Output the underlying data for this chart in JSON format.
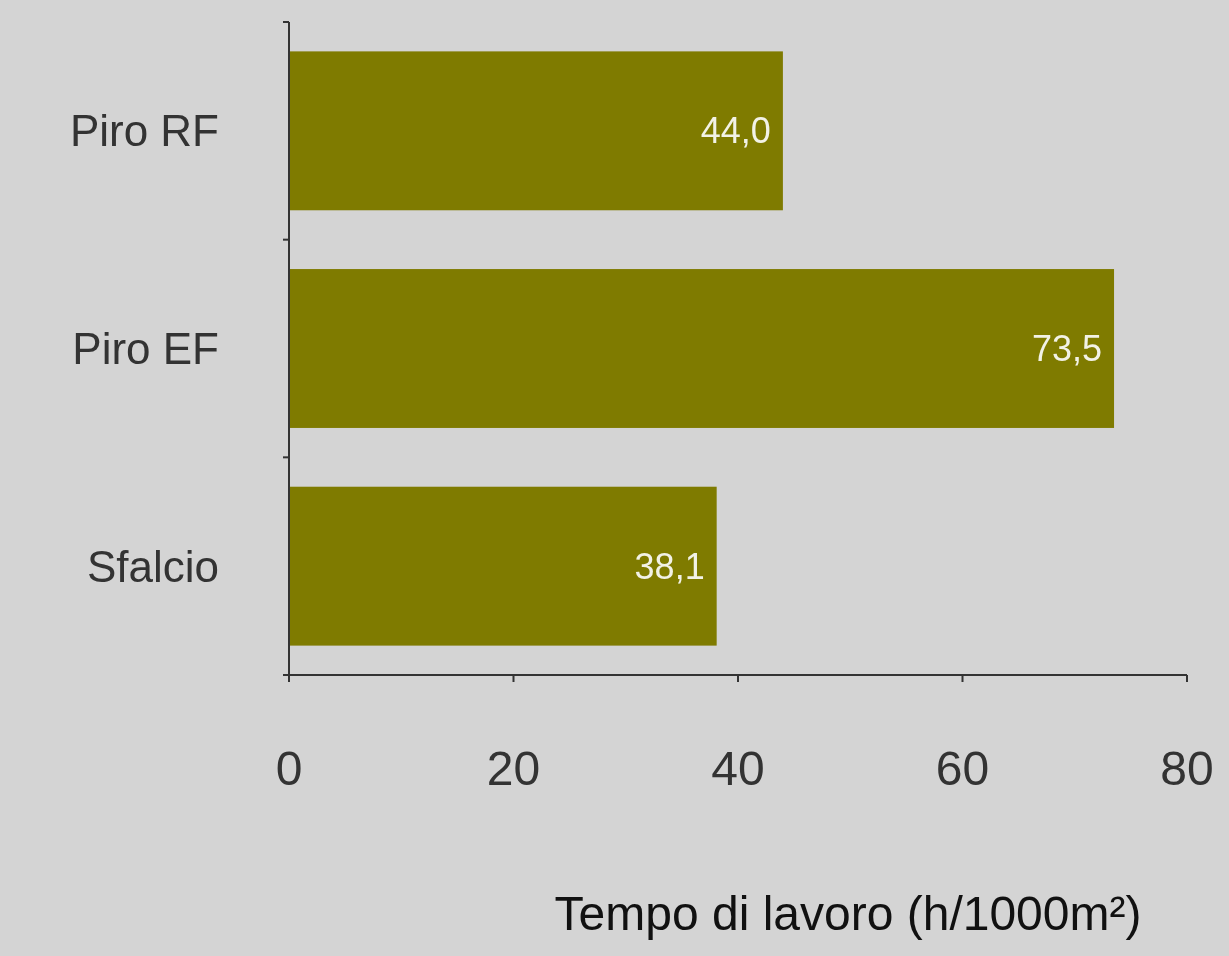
{
  "chart_data": {
    "type": "bar",
    "orientation": "horizontal",
    "categories": [
      "Piro RF",
      "Piro EF",
      "Sfalcio"
    ],
    "values": [
      44.0,
      73.5,
      38.1
    ],
    "color": "#7f7b00",
    "value_labels": [
      "44,0",
      "73,5",
      "38,1"
    ],
    "xlim": [
      0,
      80
    ],
    "xticks": [
      0,
      20,
      40,
      60,
      80
    ],
    "xlabel": "Tempo di lavoro (h/1000m²)"
  }
}
